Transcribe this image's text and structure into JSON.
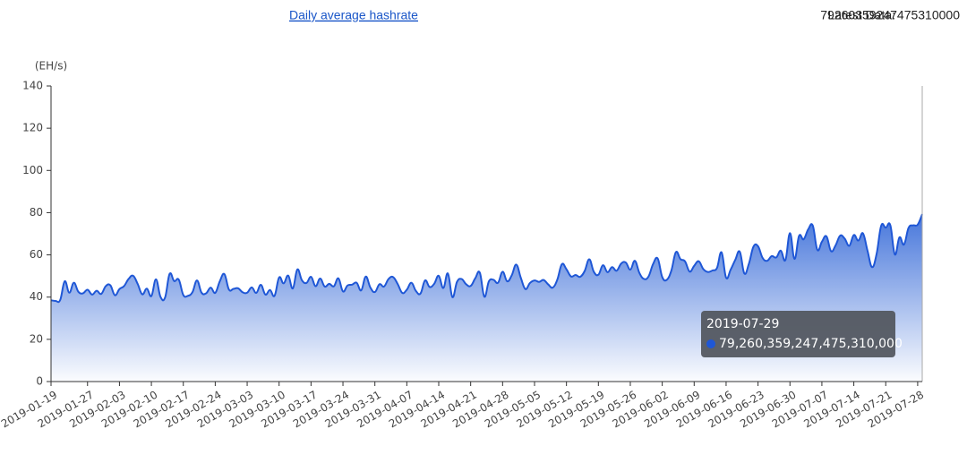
{
  "header": {
    "title": "Daily average hashrate",
    "latest_label": "Latest Data:",
    "latest_value": "79260359247475310000"
  },
  "chart_data": {
    "type": "area",
    "y_unit": "(EH/s)",
    "color": "#1f57d6",
    "ylim": [
      0,
      140
    ],
    "yticks": [
      0,
      20,
      40,
      60,
      80,
      100,
      120,
      140
    ],
    "categories": [
      "2019-01-19",
      null,
      null,
      null,
      null,
      null,
      null,
      null,
      "2019-01-27",
      null,
      null,
      null,
      null,
      null,
      null,
      "2019-02-03",
      null,
      null,
      null,
      null,
      null,
      null,
      "2019-02-10",
      null,
      null,
      null,
      null,
      null,
      null,
      "2019-02-17",
      null,
      null,
      null,
      null,
      null,
      null,
      "2019-02-24",
      null,
      null,
      null,
      null,
      null,
      null,
      "2019-03-03",
      null,
      null,
      null,
      null,
      null,
      null,
      "2019-03-10",
      null,
      null,
      null,
      null,
      null,
      null,
      "2019-03-17",
      null,
      null,
      null,
      null,
      null,
      null,
      "2019-03-24",
      null,
      null,
      null,
      null,
      null,
      null,
      "2019-03-31",
      null,
      null,
      null,
      null,
      null,
      null,
      "2019-04-07",
      null,
      null,
      null,
      null,
      null,
      null,
      "2019-04-14",
      null,
      null,
      null,
      null,
      null,
      null,
      "2019-04-21",
      null,
      null,
      null,
      null,
      null,
      null,
      "2019-04-28",
      null,
      null,
      null,
      null,
      null,
      null,
      "2019-05-05",
      null,
      null,
      null,
      null,
      null,
      null,
      "2019-05-12",
      null,
      null,
      null,
      null,
      null,
      null,
      "2019-05-19",
      null,
      null,
      null,
      null,
      null,
      null,
      "2019-05-26",
      null,
      null,
      null,
      null,
      null,
      null,
      "2019-06-02",
      null,
      null,
      null,
      null,
      null,
      null,
      "2019-06-09",
      null,
      null,
      null,
      null,
      null,
      null,
      "2019-06-16",
      null,
      null,
      null,
      null,
      null,
      null,
      "2019-06-23",
      null,
      null,
      null,
      null,
      null,
      null,
      "2019-06-30",
      null,
      null,
      null,
      null,
      null,
      null,
      "2019-07-07",
      null,
      null,
      null,
      null,
      null,
      null,
      "2019-07-14",
      null,
      null,
      null,
      null,
      null,
      null,
      "2019-07-21",
      null,
      null,
      null,
      null,
      null,
      null,
      "2019-07-28",
      null
    ],
    "values": [
      38.5,
      38.2,
      38.6,
      47.5,
      42.1,
      46.8,
      42.5,
      41.8,
      43.5,
      41.2,
      43.0,
      41.5,
      45.2,
      45.6,
      40.9,
      43.8,
      45.2,
      48.6,
      50.1,
      46.2,
      41.3,
      44.0,
      40.5,
      48.4,
      40.1,
      39.8,
      51.0,
      47.6,
      48.3,
      41.0,
      40.6,
      42.3,
      47.9,
      42.1,
      41.8,
      44.5,
      42.0,
      47.5,
      50.9,
      43.6,
      43.9,
      44.2,
      42.3,
      42.1,
      44.6,
      42.0,
      45.8,
      41.2,
      43.4,
      40.6,
      49.3,
      46.5,
      50.2,
      44.1,
      53.1,
      48.0,
      46.7,
      49.6,
      45.2,
      48.8,
      45.0,
      46.3,
      45.1,
      48.9,
      42.7,
      45.5,
      45.9,
      46.8,
      43.2,
      49.7,
      44.6,
      42.4,
      46.1,
      45.0,
      48.6,
      49.5,
      46.2,
      42.0,
      43.5,
      46.8,
      42.9,
      41.7,
      47.9,
      44.8,
      46.3,
      50.1,
      44.3,
      51.2,
      40.0,
      47.2,
      48.6,
      46.1,
      45.3,
      48.9,
      51.6,
      40.2,
      47.5,
      48.2,
      46.8,
      52.0,
      47.5,
      50.3,
      55.4,
      49.1,
      43.8,
      46.7,
      47.9,
      47.2,
      48.1,
      46.0,
      44.5,
      48.3,
      55.6,
      53.2,
      49.8,
      50.5,
      49.6,
      52.4,
      57.9,
      52.0,
      50.6,
      55.1,
      51.8,
      54.2,
      52.5,
      55.9,
      56.4,
      53.0,
      57.2,
      51.4,
      48.6,
      49.8,
      55.7,
      58.3,
      49.5,
      48.2,
      52.6,
      61.3,
      58.0,
      56.9,
      52.1,
      54.8,
      57.0,
      53.3,
      51.9,
      52.6,
      53.8,
      61.2,
      49.2,
      53.0,
      57.6,
      61.5,
      51.2,
      55.8,
      63.9,
      64.1,
      58.6,
      57.2,
      59.4,
      58.8,
      62.0,
      57.5,
      70.3,
      58.1,
      69.0,
      67.4,
      72.1,
      73.9,
      62.4,
      66.2,
      68.8,
      61.8,
      64.5,
      69.1,
      67.7,
      64.3,
      69.4,
      66.8,
      70.2,
      62.0,
      54.2,
      60.5,
      73.8,
      72.9,
      74.1,
      60.2,
      68.3,
      64.9,
      72.8,
      74.0,
      74.3,
      79.26
    ],
    "tooltip": {
      "date": "2019-07-29",
      "value_label": "79,260,359,247,475,310,000"
    }
  }
}
